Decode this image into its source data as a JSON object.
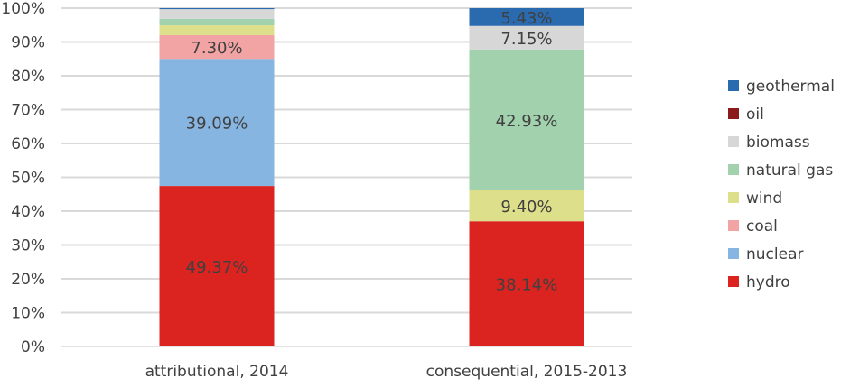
{
  "chart_data": {
    "type": "bar",
    "stacked": "percent",
    "categories": [
      "attributional, 2014",
      "consequential, 2015-2013"
    ],
    "ylim": [
      0,
      100
    ],
    "yticks": [
      "0%",
      "10%",
      "20%",
      "30%",
      "40%",
      "50%",
      "60%",
      "70%",
      "80%",
      "90%",
      "100%"
    ],
    "grid": true,
    "legend_position": "right",
    "series": [
      {
        "name": "hydro",
        "color": "#DB231F",
        "values": [
          49.37,
          38.14
        ],
        "labels": [
          "49.37%",
          "38.14%"
        ]
      },
      {
        "name": "nuclear",
        "color": "#86B5E1",
        "values": [
          39.09,
          0
        ],
        "labels": [
          "39.09%",
          ""
        ]
      },
      {
        "name": "coal",
        "color": "#F2A3A3",
        "values": [
          7.3,
          0
        ],
        "labels": [
          "7.30%",
          ""
        ]
      },
      {
        "name": "wind",
        "color": "#DEDF8A",
        "values": [
          3.0,
          9.4
        ],
        "labels": [
          "",
          "9.40%"
        ]
      },
      {
        "name": "natural gas",
        "color": "#A2D1AE",
        "values": [
          2.0,
          42.93
        ],
        "labels": [
          "",
          "42.93%"
        ]
      },
      {
        "name": "biomass",
        "color": "#D7D7D7",
        "values": [
          3.0,
          7.15
        ],
        "labels": [
          "",
          "7.15%"
        ]
      },
      {
        "name": "oil",
        "color": "#8B1A1A",
        "values": [
          0,
          0
        ],
        "labels": [
          "",
          ""
        ]
      },
      {
        "name": "geothermal",
        "color": "#2A6AAF",
        "values": [
          0.3,
          5.43
        ],
        "labels": [
          "",
          "5.43%"
        ]
      }
    ]
  }
}
